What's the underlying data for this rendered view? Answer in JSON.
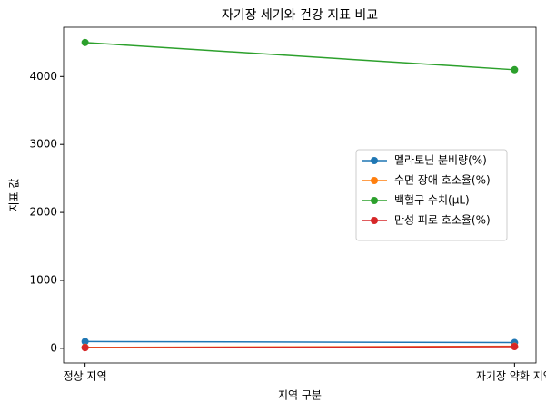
{
  "chart_data": {
    "type": "line",
    "title": "자기장 세기와 건강 지표 비교",
    "x_label": "지역 구분",
    "y_label": "지표 값",
    "categories": [
      "정상 지역",
      "자기장 약화 지역"
    ],
    "series": [
      {
        "name": "멜라토닌 분비량(%)",
        "color": "#1f77b4",
        "values": [
          100,
          85
        ]
      },
      {
        "name": "수면 장애 호소율(%)",
        "color": "#ff7f0e",
        "values": [
          15,
          30
        ]
      },
      {
        "name": "백혈구 수치(μL)",
        "color": "#2ca02c",
        "values": [
          4500,
          4100
        ]
      },
      {
        "name": "만성 피로 호소율(%)",
        "color": "#d62728",
        "values": [
          10,
          25
        ]
      }
    ],
    "ylim": [
      -215,
      4725
    ],
    "yticks": [
      0,
      1000,
      2000,
      3000,
      4000
    ],
    "legend": "center right"
  }
}
